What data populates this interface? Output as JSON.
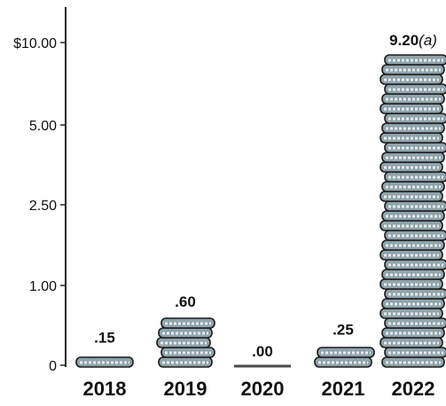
{
  "chart_data": {
    "type": "bar",
    "title": "",
    "xlabel": "",
    "ylabel": "",
    "categories": [
      "2018",
      "2019",
      "2020",
      "2021",
      "2022"
    ],
    "values": [
      0.15,
      0.6,
      0.0,
      0.25,
      9.2
    ],
    "data_labels": [
      ".15",
      ".60",
      ".00",
      ".25",
      "9.20"
    ],
    "data_label_notes": [
      "",
      "",
      "",
      "",
      "(a)"
    ],
    "y_ticks": [
      0,
      1.0,
      2.5,
      5.0,
      10.0
    ],
    "y_tick_labels": [
      "0",
      "1.00",
      "2.50",
      "5.00",
      "$10.00"
    ],
    "y_scale": "nonlinear",
    "ylim": [
      0,
      10.0
    ],
    "grid": false,
    "legend": "none",
    "bar_style": "stacked-coins",
    "colors": {
      "coin_fill": "#8fa3ab",
      "coin_edge": "#1a1a1a",
      "coin_band": "#e8ecee",
      "axis": "#222222",
      "text": "#111111",
      "zero_bar": "#4a4a4a"
    }
  }
}
